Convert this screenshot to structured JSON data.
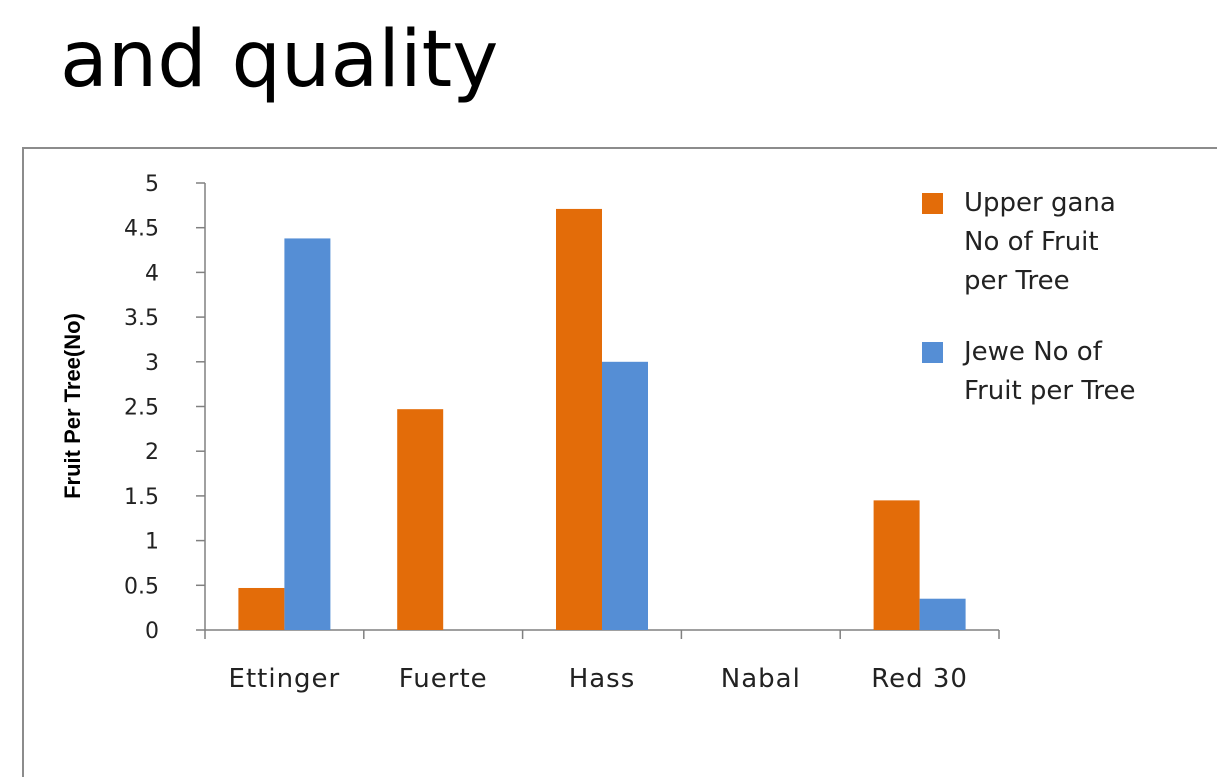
{
  "slide": {
    "title": "and quality"
  },
  "chart_data": {
    "type": "bar",
    "categories": [
      "Ettinger",
      "Fuerte",
      "Hass",
      "Nabal",
      "Red 30"
    ],
    "series": [
      {
        "name": "Upper gana No of  Fruit per Tree",
        "legend_lines": [
          "Upper gana",
          "No of  Fruit",
          "per Tree"
        ],
        "color": "#E36C09",
        "values": [
          0.47,
          2.47,
          4.71,
          0,
          1.45
        ]
      },
      {
        "name": "Jewe No of Fruit per Tree",
        "legend_lines": [
          "Jewe No of",
          "Fruit per Tree"
        ],
        "color": "#558ED5",
        "values": [
          4.38,
          0,
          3.0,
          0,
          0.35
        ]
      }
    ],
    "ylabel": "Fruit Per Tree(No)",
    "xlabel": "",
    "ylim": [
      0,
      5
    ],
    "yticks": [
      "0",
      "0.5",
      "1",
      "1.5",
      "2",
      "2.5",
      "3",
      "3.5",
      "4",
      "4.5",
      "5"
    ],
    "grid": false,
    "legend_position": "right"
  }
}
